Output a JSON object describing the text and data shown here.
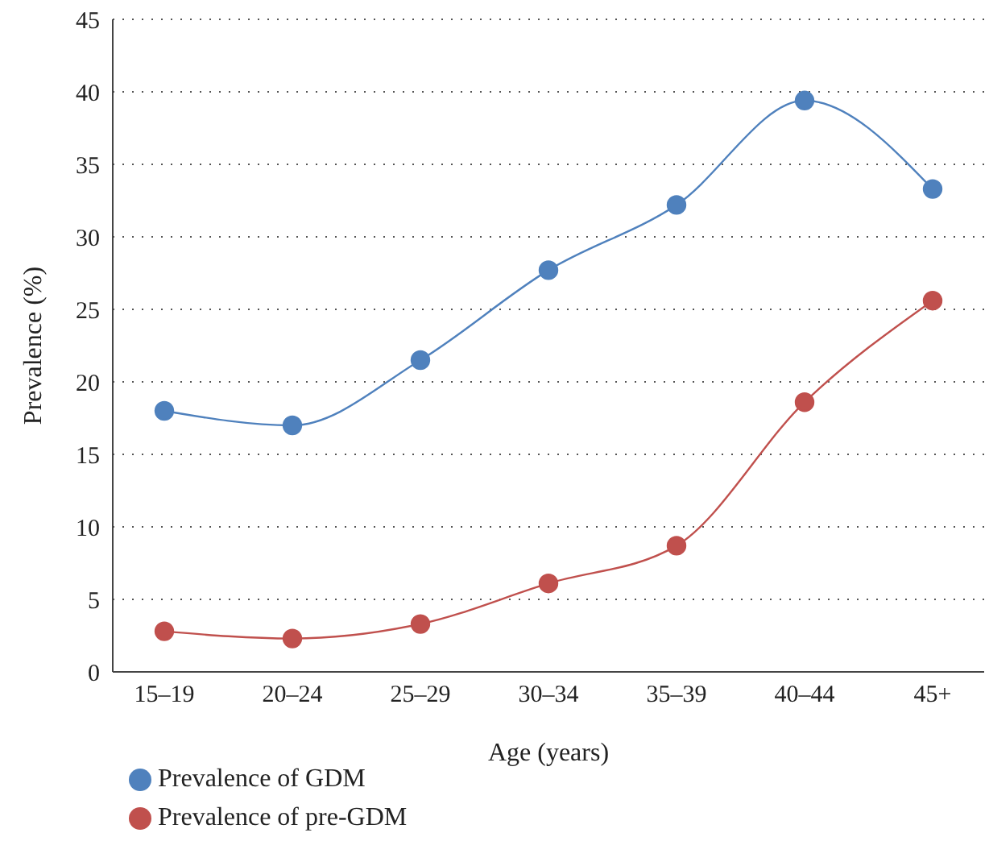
{
  "chart_data": {
    "type": "line",
    "xlabel": "Age (years)",
    "ylabel": "Prevalence (%)",
    "categories": [
      "15–19",
      "20–24",
      "25–29",
      "30–34",
      "35–39",
      "40–44",
      "45+"
    ],
    "series": [
      {
        "name": "Prevalence of GDM",
        "color": "#4f81bd",
        "values": [
          18.0,
          17.0,
          21.5,
          27.7,
          32.2,
          39.4,
          33.3
        ]
      },
      {
        "name": "Prevalence of pre-GDM",
        "color": "#c0504d",
        "values": [
          2.8,
          2.3,
          3.3,
          6.1,
          8.7,
          18.6,
          25.6
        ]
      }
    ],
    "ylim": [
      0,
      45
    ],
    "yticks": [
      0,
      5,
      10,
      15,
      20,
      25,
      30,
      35,
      40,
      45
    ],
    "grid": "y",
    "legend": "bottom left",
    "marker": "circle",
    "line_style": "solid"
  }
}
